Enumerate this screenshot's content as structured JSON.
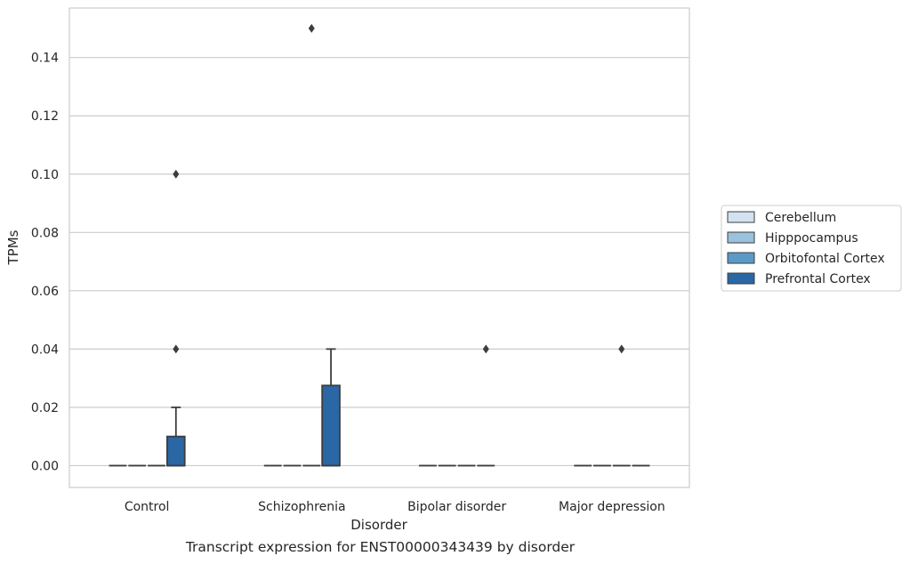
{
  "caption": "Transcript expression for ENST00000343439 by disorder",
  "chart_data": {
    "type": "box",
    "xlabel": "Disorder",
    "ylabel": "TPMs",
    "categories": [
      "Control",
      "Schizophrenia",
      "Bipolar disorder",
      "Major depression"
    ],
    "ylim": [
      -0.0075,
      0.157
    ],
    "yticks": [
      "0.00",
      "0.02",
      "0.04",
      "0.06",
      "0.08",
      "0.10",
      "0.12",
      "0.14"
    ],
    "grid": "horizontal",
    "legend_position": "right",
    "series": [
      {
        "name": "Cerebellum",
        "color": "#d2e2f0",
        "boxes": [
          {
            "q1": 0,
            "median": 0,
            "q3": 0,
            "whisker_low": 0,
            "whisker_high": 0,
            "outliers": []
          },
          {
            "q1": 0,
            "median": 0,
            "q3": 0,
            "whisker_low": 0,
            "whisker_high": 0,
            "outliers": []
          },
          {
            "q1": 0,
            "median": 0,
            "q3": 0,
            "whisker_low": 0,
            "whisker_high": 0,
            "outliers": []
          },
          {
            "q1": 0,
            "median": 0,
            "q3": 0,
            "whisker_low": 0,
            "whisker_high": 0,
            "outliers": []
          }
        ]
      },
      {
        "name": "Hipppocampus",
        "color": "#9ac2dc",
        "boxes": [
          {
            "q1": 0,
            "median": 0,
            "q3": 0,
            "whisker_low": 0,
            "whisker_high": 0,
            "outliers": []
          },
          {
            "q1": 0,
            "median": 0,
            "q3": 0,
            "whisker_low": 0,
            "whisker_high": 0,
            "outliers": []
          },
          {
            "q1": 0,
            "median": 0,
            "q3": 0,
            "whisker_low": 0,
            "whisker_high": 0,
            "outliers": []
          },
          {
            "q1": 0,
            "median": 0,
            "q3": 0,
            "whisker_low": 0,
            "whisker_high": 0,
            "outliers": []
          }
        ]
      },
      {
        "name": "Orbitofontal Cortex",
        "color": "#5b9ac6",
        "boxes": [
          {
            "q1": 0,
            "median": 0,
            "q3": 0,
            "whisker_low": 0,
            "whisker_high": 0,
            "outliers": []
          },
          {
            "q1": 0,
            "median": 0,
            "q3": 0,
            "whisker_low": 0,
            "whisker_high": 0,
            "outliers": [
              0.15
            ]
          },
          {
            "q1": 0,
            "median": 0,
            "q3": 0,
            "whisker_low": 0,
            "whisker_high": 0,
            "outliers": []
          },
          {
            "q1": 0,
            "median": 0,
            "q3": 0,
            "whisker_low": 0,
            "whisker_high": 0,
            "outliers": [
              0.04
            ]
          }
        ]
      },
      {
        "name": "Prefrontal Cortex",
        "color": "#2a67a5",
        "boxes": [
          {
            "q1": 0,
            "median": 0,
            "q3": 0.01,
            "whisker_low": 0,
            "whisker_high": 0.02,
            "outliers": [
              0.04,
              0.1
            ]
          },
          {
            "q1": 0,
            "median": 0,
            "q3": 0.0275,
            "whisker_low": 0,
            "whisker_high": 0.04,
            "outliers": []
          },
          {
            "q1": 0,
            "median": 0,
            "q3": 0,
            "whisker_low": 0,
            "whisker_high": 0,
            "outliers": [
              0.04
            ]
          },
          {
            "q1": 0,
            "median": 0,
            "q3": 0,
            "whisker_low": 0,
            "whisker_high": 0,
            "outliers": []
          }
        ]
      }
    ]
  }
}
